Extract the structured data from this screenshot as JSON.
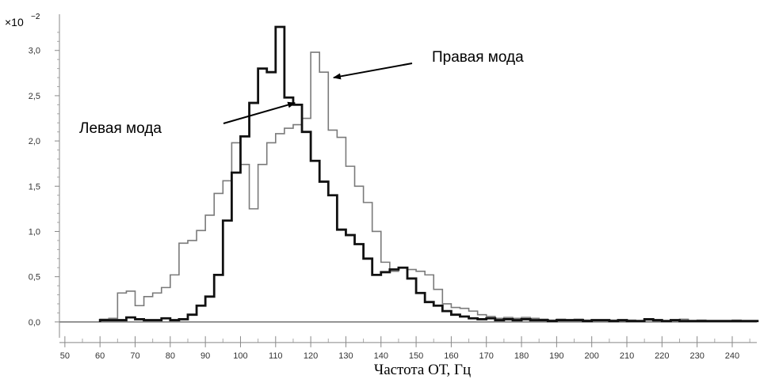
{
  "chart_data": {
    "type": "line",
    "step": true,
    "title": "",
    "xlabel": "Частота ОТ, Гц",
    "ylabel": "",
    "y_scale_prefix": "×10",
    "y_scale_exponent": "−2",
    "xlim": [
      48,
      247
    ],
    "ylim": [
      -0.15,
      3.4
    ],
    "x_ticks": [
      50,
      60,
      70,
      80,
      90,
      100,
      110,
      120,
      130,
      140,
      150,
      160,
      170,
      180,
      190,
      200,
      210,
      220,
      230,
      240
    ],
    "y_ticks": [
      {
        "value": 0.0,
        "label": "0,0"
      },
      {
        "value": 0.5,
        "label": "0,5"
      },
      {
        "value": 1.0,
        "label": "1,0"
      },
      {
        "value": 1.5,
        "label": "1,5"
      },
      {
        "value": 2.0,
        "label": "2,0"
      },
      {
        "value": 2.5,
        "label": "2,5"
      },
      {
        "value": 3.0,
        "label": "3,0"
      }
    ],
    "bin_width": 2.5,
    "bin_start": 60,
    "series": [
      {
        "key": "right",
        "color": "#7a7a7a",
        "values": [
          0.03,
          0.04,
          0.32,
          0.34,
          0.18,
          0.28,
          0.32,
          0.38,
          0.52,
          0.87,
          0.9,
          1.01,
          1.18,
          1.42,
          1.56,
          1.98,
          1.74,
          1.25,
          1.74,
          1.98,
          2.08,
          2.14,
          2.18,
          2.25,
          2.98,
          2.76,
          2.12,
          2.04,
          1.72,
          1.5,
          1.32,
          1.0,
          0.66,
          0.56,
          0.6,
          0.58,
          0.56,
          0.52,
          0.36,
          0.2,
          0.16,
          0.15,
          0.12,
          0.08,
          0.06,
          0.04,
          0.05,
          0.04,
          0.05,
          0.04,
          0.03,
          0.02,
          0.03,
          0.02,
          0.03,
          0.02,
          0.02,
          0.02,
          0.02,
          0.01,
          0.02,
          0.01,
          0.02,
          0.01,
          0.01,
          0.02,
          0.03,
          0.01,
          0.02,
          0.01,
          0.01,
          0.01,
          0.02,
          0.01,
          0.01
        ]
      },
      {
        "key": "left",
        "color": "#111111",
        "values": [
          0.02,
          0.02,
          0.02,
          0.05,
          0.03,
          0.02,
          0.02,
          0.04,
          0.02,
          0.03,
          0.08,
          0.18,
          0.28,
          0.52,
          1.12,
          1.65,
          2.05,
          2.42,
          2.8,
          2.76,
          3.26,
          2.48,
          2.4,
          2.1,
          1.78,
          1.55,
          1.4,
          1.02,
          0.96,
          0.86,
          0.7,
          0.52,
          0.55,
          0.58,
          0.6,
          0.48,
          0.32,
          0.22,
          0.18,
          0.12,
          0.08,
          0.06,
          0.04,
          0.03,
          0.04,
          0.02,
          0.03,
          0.02,
          0.03,
          0.02,
          0.02,
          0.01,
          0.02,
          0.02,
          0.02,
          0.01,
          0.02,
          0.02,
          0.01,
          0.02,
          0.01,
          0.01,
          0.03,
          0.02,
          0.01,
          0.02,
          0.01,
          0.01,
          0.01,
          0.01,
          0.01,
          0.01,
          0.01,
          0.01,
          0.01
        ]
      }
    ],
    "annotations": [
      {
        "key": "left_mode",
        "text": "Левая мода",
        "target": [
          115.5,
          2.42
        ]
      },
      {
        "key": "right_mode",
        "text": "Правая мода",
        "target": [
          126.5,
          2.7
        ]
      }
    ]
  }
}
